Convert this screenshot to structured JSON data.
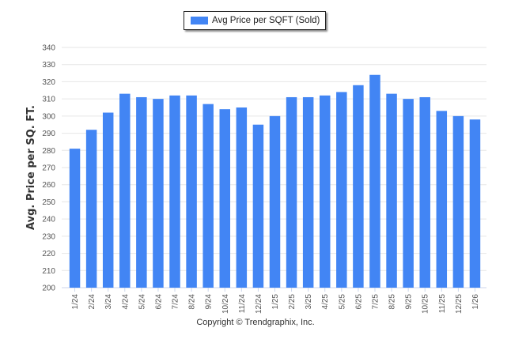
{
  "chart_data": {
    "type": "bar",
    "title": "",
    "legend": [
      {
        "name": "Avg Price per SQFT (Sold)",
        "color": "#4285f4"
      }
    ],
    "legend_position": "top-center",
    "xlabel": "",
    "ylabel": "Avg. Price per SQ. FT.",
    "ylim": [
      200,
      340
    ],
    "yticks": [
      200,
      210,
      220,
      230,
      240,
      250,
      260,
      270,
      280,
      290,
      300,
      310,
      320,
      330,
      340
    ],
    "grid": true,
    "categories": [
      "1/24",
      "2/24",
      "3/24",
      "4/24",
      "5/24",
      "6/24",
      "7/24",
      "8/24",
      "9/24",
      "10/24",
      "11/24",
      "12/24",
      "1/25",
      "2/25",
      "3/25",
      "4/25",
      "5/25",
      "6/25",
      "7/25",
      "8/25",
      "9/25",
      "10/25",
      "11/25",
      "12/25",
      "1/26"
    ],
    "series": [
      {
        "name": "Avg Price per SQFT (Sold)",
        "color": "#4285f4",
        "values": [
          281,
          292,
          302,
          313,
          311,
          310,
          312,
          312,
          307,
          304,
          305,
          295,
          300,
          311,
          311,
          312,
          314,
          318,
          324,
          313,
          310,
          311,
          303,
          300,
          298
        ]
      }
    ]
  },
  "footer": {
    "copyright": "Copyright © Trendgraphix, Inc."
  }
}
